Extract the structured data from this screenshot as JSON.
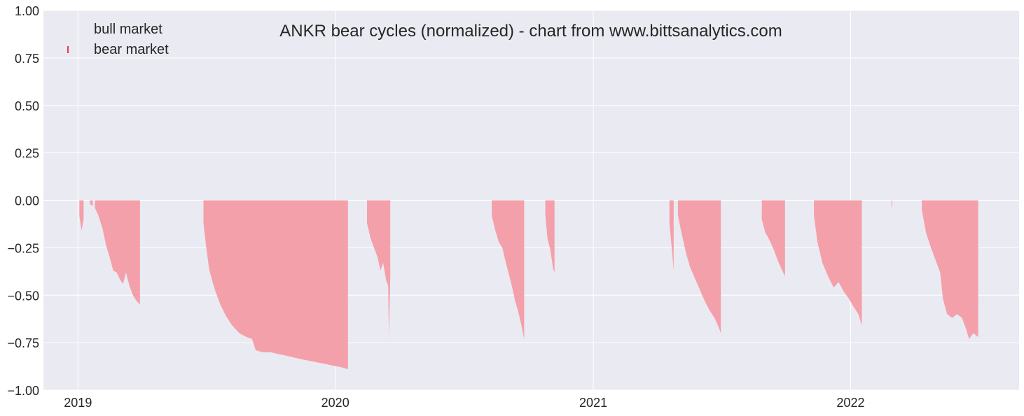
{
  "chart_data": {
    "type": "area",
    "title": "ANKR bear cycles (normalized)  - chart from www.bittsanalytics.com",
    "xlabel": "",
    "ylabel": "",
    "xlim": [
      "2018-11-13",
      "2022-08-28"
    ],
    "ylim": [
      -1.0,
      1.0
    ],
    "yticks": [
      1.0,
      0.75,
      0.5,
      0.25,
      0.0,
      -0.25,
      -0.5,
      -0.75,
      -1.0
    ],
    "ytick_labels": [
      "1.00",
      "0.75",
      "0.50",
      "0.25",
      "0.00",
      "−0.25",
      "−0.50",
      "−0.75",
      "−1.00"
    ],
    "xticks": [
      "2019-01-01",
      "2020-01-01",
      "2021-01-01",
      "2022-01-01"
    ],
    "xtick_labels": [
      "2019",
      "2020",
      "2021",
      "2022"
    ],
    "grid": true,
    "legend_position": "top-left",
    "legend": [
      {
        "label": "bull market",
        "color": "none"
      },
      {
        "label": "bear market",
        "color": "#f4a0ab"
      }
    ],
    "series": [
      {
        "name": "bear market",
        "color": "#f4a0ab",
        "segments": [
          {
            "points": [
              [
                "2019-01-03",
                -0.08
              ],
              [
                "2019-01-06",
                -0.16
              ],
              [
                "2019-01-09",
                -0.1
              ]
            ]
          },
          {
            "points": [
              [
                "2019-01-18",
                -0.02
              ],
              [
                "2019-01-22",
                -0.03
              ]
            ]
          },
          {
            "points": [
              [
                "2019-01-25",
                -0.04
              ],
              [
                "2019-01-30",
                -0.08
              ],
              [
                "2019-02-05",
                -0.15
              ],
              [
                "2019-02-10",
                -0.24
              ],
              [
                "2019-02-15",
                -0.3
              ],
              [
                "2019-02-20",
                -0.37
              ],
              [
                "2019-02-25",
                -0.38
              ],
              [
                "2019-03-02",
                -0.42
              ],
              [
                "2019-03-06",
                -0.44
              ],
              [
                "2019-03-10",
                -0.38
              ],
              [
                "2019-03-15",
                -0.45
              ],
              [
                "2019-03-20",
                -0.5
              ],
              [
                "2019-03-25",
                -0.53
              ],
              [
                "2019-03-30",
                -0.55
              ]
            ]
          },
          {
            "points": [
              [
                "2019-06-28",
                -0.12
              ],
              [
                "2019-07-02",
                -0.25
              ],
              [
                "2019-07-06",
                -0.36
              ],
              [
                "2019-07-10",
                -0.42
              ],
              [
                "2019-07-15",
                -0.48
              ],
              [
                "2019-07-22",
                -0.55
              ],
              [
                "2019-07-30",
                -0.61
              ],
              [
                "2019-08-08",
                -0.66
              ],
              [
                "2019-08-18",
                -0.7
              ],
              [
                "2019-08-28",
                -0.72
              ],
              [
                "2019-09-05",
                -0.73
              ],
              [
                "2019-09-10",
                -0.79
              ],
              [
                "2019-09-20",
                -0.8
              ],
              [
                "2019-10-01",
                -0.8
              ],
              [
                "2019-10-12",
                -0.81
              ],
              [
                "2019-10-25",
                -0.82
              ],
              [
                "2019-11-05",
                -0.83
              ],
              [
                "2019-11-18",
                -0.84
              ],
              [
                "2019-12-01",
                -0.85
              ],
              [
                "2019-12-15",
                -0.86
              ],
              [
                "2019-12-28",
                -0.87
              ],
              [
                "2020-01-10",
                -0.88
              ],
              [
                "2020-01-19",
                -0.89
              ]
            ]
          },
          {
            "points": [
              [
                "2020-02-15",
                -0.12
              ],
              [
                "2020-02-20",
                -0.2
              ],
              [
                "2020-02-25",
                -0.25
              ],
              [
                "2020-03-01",
                -0.3
              ],
              [
                "2020-03-05",
                -0.37
              ],
              [
                "2020-03-09",
                -0.33
              ],
              [
                "2020-03-13",
                -0.42
              ],
              [
                "2020-03-16",
                -0.45
              ],
              [
                "2020-03-17",
                -0.72
              ],
              [
                "2020-03-19",
                -0.4
              ]
            ]
          },
          {
            "points": [
              [
                "2020-08-10",
                -0.08
              ],
              [
                "2020-08-15",
                -0.16
              ],
              [
                "2020-08-20",
                -0.22
              ],
              [
                "2020-08-25",
                -0.25
              ],
              [
                "2020-08-30",
                -0.33
              ],
              [
                "2020-09-04",
                -0.4
              ],
              [
                "2020-09-08",
                -0.46
              ],
              [
                "2020-09-12",
                -0.53
              ],
              [
                "2020-09-16",
                -0.58
              ],
              [
                "2020-09-20",
                -0.64
              ],
              [
                "2020-09-25",
                -0.73
              ]
            ]
          },
          {
            "points": [
              [
                "2020-10-25",
                -0.08
              ],
              [
                "2020-10-28",
                -0.2
              ],
              [
                "2020-11-01",
                -0.26
              ],
              [
                "2020-11-05",
                -0.36
              ],
              [
                "2020-11-07",
                -0.38
              ]
            ]
          },
          {
            "points": [
              [
                "2021-04-19",
                -0.12
              ],
              [
                "2021-04-22",
                -0.24
              ],
              [
                "2021-04-25",
                -0.37
              ]
            ]
          },
          {
            "points": [
              [
                "2021-05-01",
                -0.08
              ],
              [
                "2021-05-06",
                -0.17
              ],
              [
                "2021-05-12",
                -0.27
              ],
              [
                "2021-05-18",
                -0.35
              ],
              [
                "2021-05-25",
                -0.41
              ],
              [
                "2021-06-01",
                -0.47
              ],
              [
                "2021-06-08",
                -0.53
              ],
              [
                "2021-06-15",
                -0.58
              ],
              [
                "2021-06-22",
                -0.62
              ],
              [
                "2021-06-28",
                -0.67
              ],
              [
                "2021-07-01",
                -0.7
              ]
            ]
          },
          {
            "points": [
              [
                "2021-08-28",
                -0.1
              ],
              [
                "2021-09-02",
                -0.17
              ],
              [
                "2021-09-08",
                -0.21
              ],
              [
                "2021-09-14",
                -0.26
              ],
              [
                "2021-09-20",
                -0.32
              ],
              [
                "2021-09-26",
                -0.37
              ],
              [
                "2021-09-30",
                -0.4
              ]
            ]
          },
          {
            "points": [
              [
                "2021-11-10",
                -0.08
              ],
              [
                "2021-11-15",
                -0.22
              ],
              [
                "2021-11-22",
                -0.33
              ],
              [
                "2021-11-30",
                -0.4
              ],
              [
                "2021-12-08",
                -0.46
              ],
              [
                "2021-12-15",
                -0.43
              ],
              [
                "2021-12-22",
                -0.48
              ],
              [
                "2021-12-30",
                -0.52
              ],
              [
                "2022-01-05",
                -0.56
              ],
              [
                "2022-01-12",
                -0.6
              ],
              [
                "2022-01-17",
                -0.66
              ]
            ]
          },
          {
            "points": [
              [
                "2022-02-28",
                -0.03
              ],
              [
                "2022-03-01",
                -0.04
              ]
            ]
          },
          {
            "points": [
              [
                "2022-04-12",
                -0.05
              ],
              [
                "2022-04-18",
                -0.17
              ],
              [
                "2022-04-25",
                -0.25
              ],
              [
                "2022-05-02",
                -0.32
              ],
              [
                "2022-05-08",
                -0.38
              ],
              [
                "2022-05-12",
                -0.52
              ],
              [
                "2022-05-18",
                -0.6
              ],
              [
                "2022-05-25",
                -0.62
              ],
              [
                "2022-06-01",
                -0.6
              ],
              [
                "2022-06-08",
                -0.62
              ],
              [
                "2022-06-14",
                -0.68
              ],
              [
                "2022-06-18",
                -0.73
              ],
              [
                "2022-06-24",
                -0.7
              ],
              [
                "2022-07-01",
                -0.72
              ]
            ]
          }
        ]
      }
    ]
  },
  "colors": {
    "background": "#eaeaf2",
    "grid": "#ffffff",
    "bear_fill": "#f4a0ab",
    "bear_legend_marker": "#e8394f",
    "text": "#262626"
  }
}
